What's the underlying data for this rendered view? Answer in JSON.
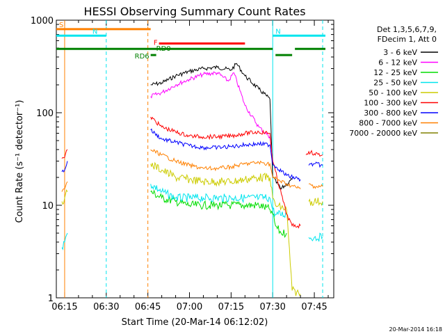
{
  "chart_data": {
    "type": "line",
    "title": "HESSI Observing Summary Count Rates",
    "xlabel": "Start Time (20-Mar-14 06:12:02)",
    "ylabel": "Count Rate (s⁻¹ detector⁻¹)",
    "yscale": "log",
    "ylim": [
      1,
      1000
    ],
    "xlim": [
      "06:12",
      "07:52"
    ],
    "x_ticks": [
      "06:15",
      "06:30",
      "06:45",
      "07:00",
      "07:15",
      "07:30",
      "07:45"
    ],
    "y_ticks": [
      "1",
      "10",
      "100",
      "1000"
    ],
    "footer_date": "20-Mar-2014 16:18",
    "legend_header": [
      "Det 1,3,5,6,7,9,",
      "FDecim 1, Att 0"
    ],
    "series": [
      {
        "name": "3 - 6 keV",
        "color": "#000000",
        "segments": [
          {
            "x": [
              "06:46",
              "06:50",
              "06:55",
              "07:00",
              "07:05",
              "07:10",
              "07:15",
              "07:17",
              "07:20",
              "07:25",
              "07:29",
              "07:30",
              "07:33",
              "07:37"
            ],
            "y": [
              200,
              210,
              250,
              280,
              300,
              310,
              290,
              340,
              250,
              180,
              140,
              20,
              15,
              19
            ]
          }
        ]
      },
      {
        "name": "6 - 12 keV",
        "color": "#ff00ff",
        "segments": [
          {
            "x": [
              "06:46",
              "06:50",
              "06:55",
              "07:00",
              "07:05",
              "07:10",
              "07:14",
              "07:16",
              "07:20",
              "07:25",
              "07:29",
              "07:30"
            ],
            "y": [
              150,
              165,
              200,
              230,
              260,
              270,
              220,
              270,
              120,
              70,
              55,
              30
            ]
          }
        ]
      },
      {
        "name": "12 - 25 keV",
        "color": "#00dd00",
        "segments": [
          {
            "x": [
              "06:46",
              "06:50",
              "06:55",
              "07:00",
              "07:05",
              "07:10",
              "07:15",
              "07:20",
              "07:25",
              "07:29",
              "07:30",
              "07:31",
              "07:33",
              "07:35"
            ],
            "y": [
              14,
              12,
              11,
              10,
              10,
              10,
              10,
              10,
              10,
              9,
              8,
              6,
              5,
              5
            ]
          }
        ]
      },
      {
        "name": "25 - 50 keV",
        "color": "#00e5ee",
        "segments": [
          {
            "x": [
              "06:14",
              "06:15",
              "06:16"
            ],
            "y": [
              3.5,
              4,
              5
            ]
          },
          {
            "x": [
              "06:46",
              "06:50",
              "06:55",
              "07:00",
              "07:05",
              "07:10",
              "07:15",
              "07:20",
              "07:25",
              "07:29",
              "07:30",
              "07:31",
              "07:35"
            ],
            "y": [
              17,
              14,
              12,
              12,
              12,
              12,
              12,
              12,
              12,
              12,
              9,
              8,
              8
            ]
          },
          {
            "x": [
              "07:43",
              "07:45",
              "07:48"
            ],
            "y": [
              4.5,
              4.5,
              4.5
            ]
          }
        ]
      },
      {
        "name": "50 - 100 keV",
        "color": "#cccc00",
        "segments": [
          {
            "x": [
              "06:14",
              "06:15",
              "06:16"
            ],
            "y": [
              11,
              12,
              14
            ]
          },
          {
            "x": [
              "06:46",
              "06:50",
              "06:55",
              "07:00",
              "07:05",
              "07:10",
              "07:15",
              "07:20",
              "07:25",
              "07:29",
              "07:30",
              "07:31",
              "07:35",
              "07:37",
              "07:40"
            ],
            "y": [
              28,
              24,
              20,
              19,
              18,
              18,
              18,
              19,
              20,
              20,
              12,
              10,
              9,
              1.2,
              1.1
            ]
          },
          {
            "x": [
              "07:43",
              "07:45",
              "07:48"
            ],
            "y": [
              11,
              11,
              11
            ]
          }
        ]
      },
      {
        "name": "100 - 300 keV",
        "color": "#ff0000",
        "segments": [
          {
            "x": [
              "06:14",
              "06:15",
              "06:16"
            ],
            "y": [
              32,
              33,
              40
            ]
          },
          {
            "x": [
              "06:46",
              "06:50",
              "06:55",
              "07:00",
              "07:05",
              "07:10",
              "07:15",
              "07:20",
              "07:25",
              "07:29",
              "07:30",
              "07:35",
              "07:37",
              "07:40"
            ],
            "y": [
              90,
              70,
              62,
              56,
              55,
              55,
              56,
              60,
              62,
              60,
              30,
              8,
              6,
              6
            ]
          },
          {
            "x": [
              "07:42",
              "07:43",
              "07:45",
              "07:48"
            ],
            "y": [
              35,
              38,
              36,
              35
            ]
          }
        ]
      },
      {
        "name": "300 - 800 keV",
        "color": "#0000ff",
        "segments": [
          {
            "x": [
              "06:14",
              "06:15",
              "06:16"
            ],
            "y": [
              23,
              24,
              30
            ]
          },
          {
            "x": [
              "06:46",
              "06:50",
              "06:55",
              "07:00",
              "07:05",
              "07:10",
              "07:15",
              "07:20",
              "07:25",
              "07:29",
              "07:30",
              "07:35",
              "07:40"
            ],
            "y": [
              65,
              52,
              48,
              44,
              42,
              42,
              43,
              45,
              46,
              45,
              28,
              21,
              19
            ]
          },
          {
            "x": [
              "07:43",
              "07:45",
              "07:48"
            ],
            "y": [
              27,
              28,
              27
            ]
          }
        ]
      },
      {
        "name": "800 - 7000 keV",
        "color": "#ff8000",
        "segments": [
          {
            "x": [
              "06:14",
              "06:15",
              "06:16"
            ],
            "y": [
              14,
              15,
              18
            ]
          },
          {
            "x": [
              "06:46",
              "06:50",
              "06:55",
              "07:00",
              "07:05",
              "07:10",
              "07:15",
              "07:20",
              "07:25",
              "07:29",
              "07:30",
              "07:35",
              "07:40"
            ],
            "y": [
              40,
              35,
              30,
              27,
              25,
              25,
              26,
              28,
              29,
              28,
              20,
              17,
              15
            ]
          },
          {
            "x": [
              "07:43",
              "07:45",
              "07:48"
            ],
            "y": [
              17,
              16,
              16
            ]
          }
        ]
      },
      {
        "name": "7000 - 20000 keV",
        "color": "#808000",
        "segments": []
      }
    ],
    "annotations": [
      {
        "text": "S",
        "color": "#ff8000",
        "x1": "06:12",
        "x2": "06:46",
        "y": 800
      },
      {
        "text": "N",
        "color": "#00e5ee",
        "x1": "06:12",
        "x2": "06:30",
        "y": 680
      },
      {
        "text": "N",
        "color": "#00e5ee",
        "x1": "07:30",
        "x2": "07:49",
        "y": 680
      },
      {
        "text": "F",
        "color": "#ff0000",
        "x1": "06:49",
        "x2": "07:20",
        "y": 560
      },
      {
        "text": "RD0",
        "color": "#008000",
        "x1": "06:12",
        "x2": "07:30",
        "y": 490
      },
      {
        "text": "RD6",
        "color": "#008000",
        "x1": "06:46",
        "x2": "06:48",
        "y": 420
      }
    ],
    "green_bars": [
      {
        "x1": "07:31",
        "x2": "07:37",
        "y": 420
      },
      {
        "x1": "07:38",
        "x2": "07:49",
        "y": 490
      }
    ],
    "vlines": [
      {
        "x": "06:15",
        "color": "#ff8000",
        "style": "solid"
      },
      {
        "x": "06:30",
        "color": "#00e5ee",
        "style": "dashed"
      },
      {
        "x": "06:45",
        "color": "#ff8000",
        "style": "dashed"
      },
      {
        "x": "07:30",
        "color": "#00e5ee",
        "style": "solid"
      },
      {
        "x": "07:48",
        "color": "#00e5ee",
        "style": "dashed"
      }
    ]
  }
}
